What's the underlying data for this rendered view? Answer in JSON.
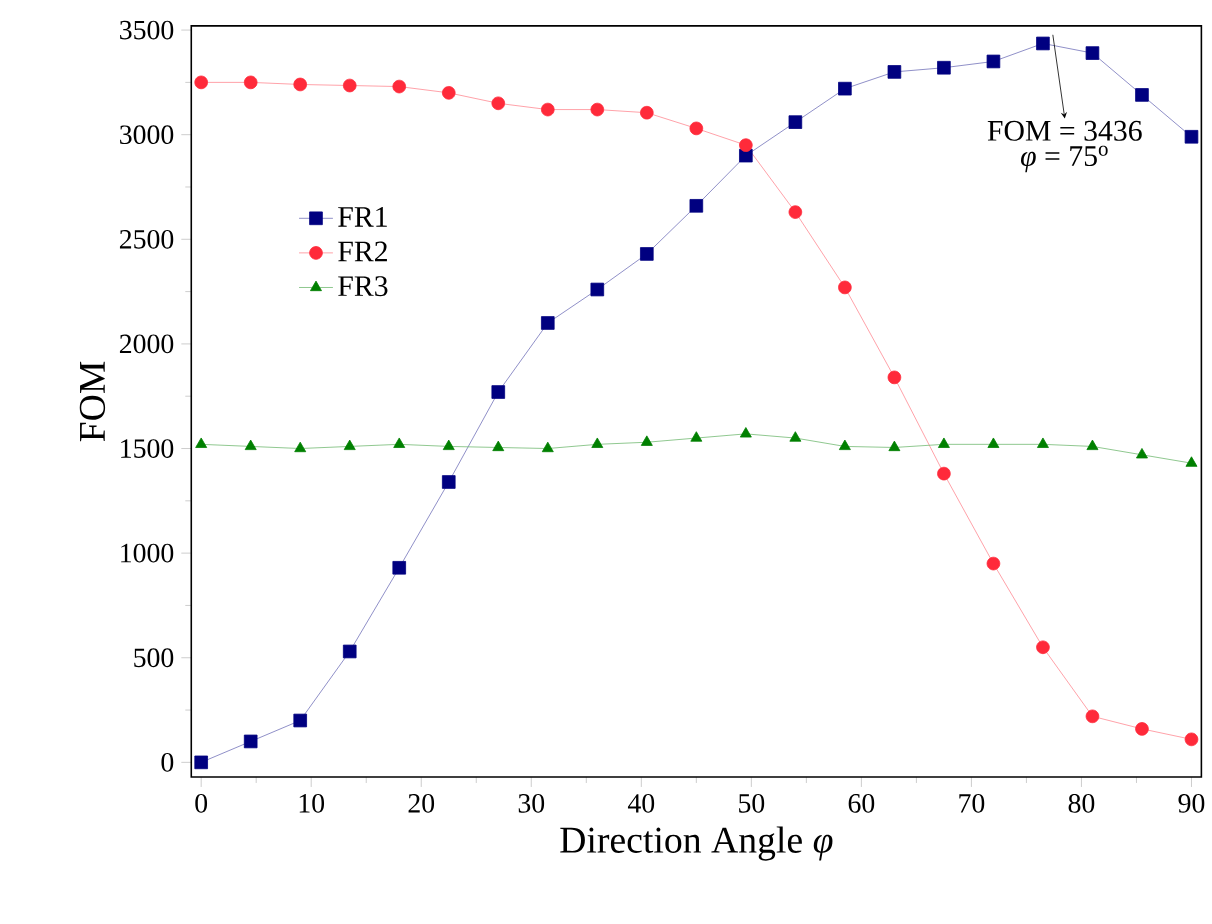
{
  "chart_data": {
    "type": "line",
    "xlabel": "Direction Angle *φ*",
    "ylabel": "FOM",
    "x": [
      0,
      4.5,
      9,
      13.5,
      18,
      22.5,
      27,
      31.5,
      36,
      40.5,
      45,
      49.5,
      54,
      58.5,
      63,
      67.5,
      72,
      76.5,
      81,
      85.5,
      90
    ],
    "series": [
      {
        "name": "FR1",
        "color": "#000080",
        "marker": "square",
        "values": [
          0,
          100,
          200,
          530,
          930,
          1340,
          1770,
          2100,
          2260,
          2430,
          2660,
          2900,
          3060,
          3220,
          3300,
          3320,
          3350,
          3436,
          3390,
          3190,
          2990
        ]
      },
      {
        "name": "FR2",
        "color": "#ff2a3a",
        "marker": "circle",
        "values": [
          3250,
          3250,
          3240,
          3235,
          3230,
          3200,
          3150,
          3120,
          3120,
          3105,
          3030,
          2950,
          2630,
          2270,
          1840,
          1380,
          950,
          550,
          220,
          160,
          110
        ]
      },
      {
        "name": "FR3",
        "color": "#008000",
        "marker": "triangle",
        "values": [
          1520,
          1510,
          1500,
          1510,
          1520,
          1510,
          1505,
          1500,
          1520,
          1530,
          1550,
          1570,
          1550,
          1510,
          1505,
          1520,
          1520,
          1520,
          1510,
          1470,
          1430
        ]
      }
    ],
    "xlim": [
      -0.9,
      90.9
    ],
    "ylim": [
      -70,
      3520
    ],
    "xticks": [
      0,
      10,
      20,
      30,
      40,
      50,
      60,
      70,
      80,
      90
    ],
    "yticks": [
      0,
      500,
      1000,
      1500,
      2000,
      2500,
      3000,
      3500
    ],
    "legend": "top left",
    "grid": false,
    "line_style": "solid",
    "annotations": [
      {
        "text": "FOM = 3436",
        "x": 76.5,
        "y": 3436
      },
      "*φ* = 75$^{o}$"
    ]
  }
}
